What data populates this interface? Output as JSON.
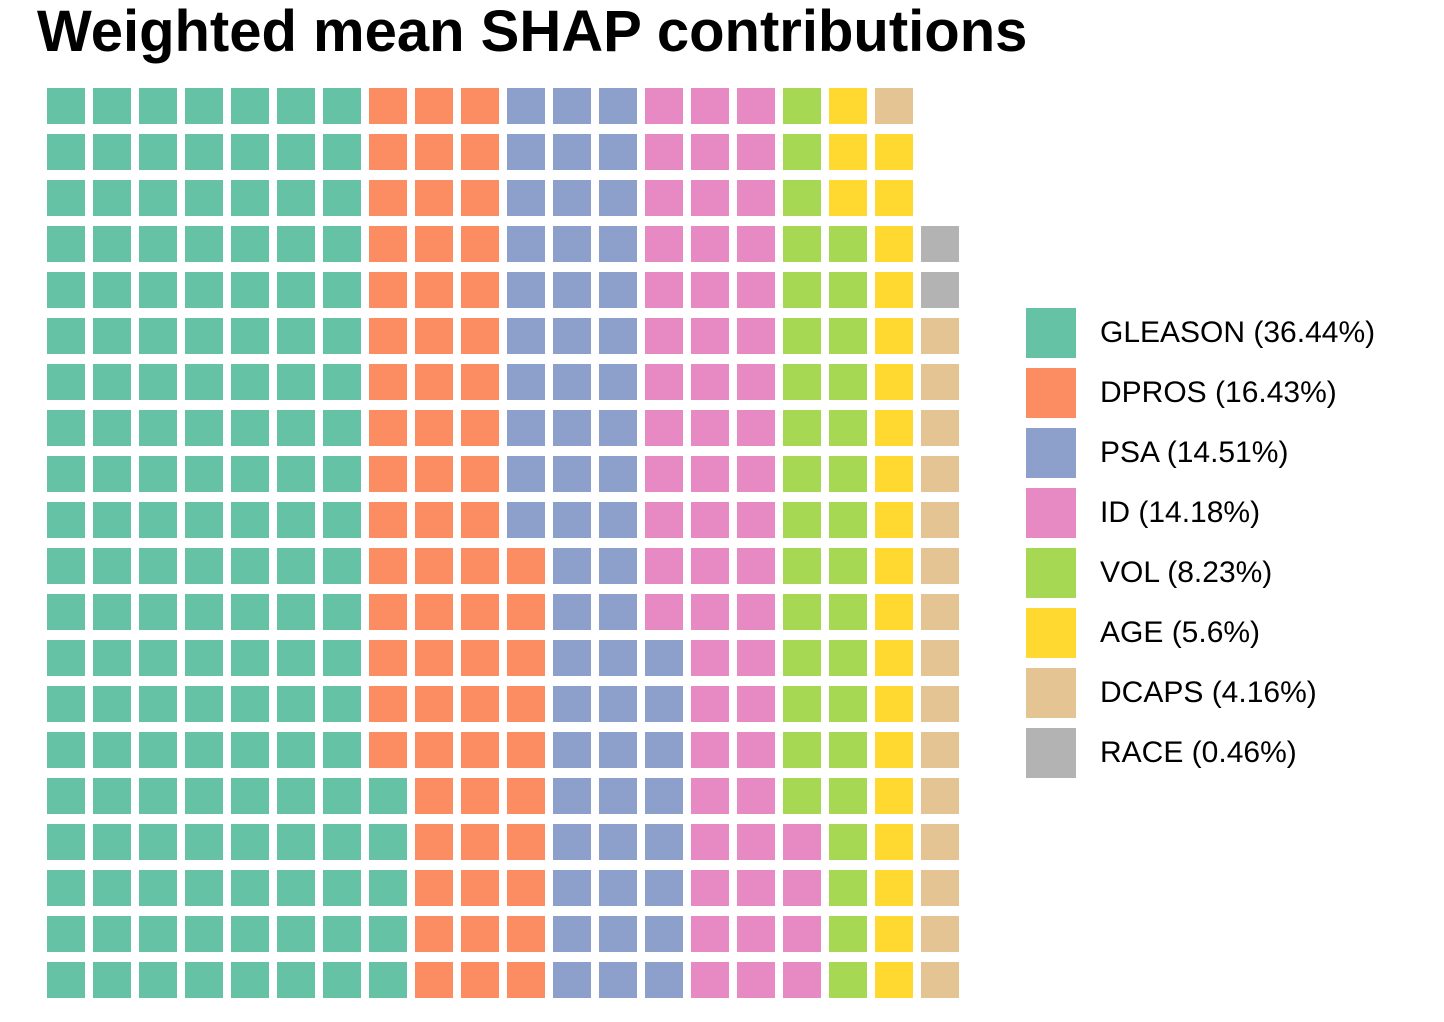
{
  "title": "Weighted mean SHAP contributions",
  "chart_data": {
    "type": "waffle",
    "title": "Weighted mean SHAP contributions",
    "grid": {
      "rows": 20,
      "cols": 20,
      "total_squares": 397,
      "empty_squares": 3,
      "fill_order": "column-major, bottom-to-top within each column, columns left-to-right"
    },
    "legend_position": "right",
    "series": [
      {
        "name": "GLEASON",
        "percent": 36.44,
        "squares": 145,
        "color": "#66C2A5",
        "legend_label": "GLEASON (36.44%)"
      },
      {
        "name": "DPROS",
        "percent": 16.43,
        "squares": 65,
        "color": "#FC8D62",
        "legend_label": "DPROS (16.43%)"
      },
      {
        "name": "PSA",
        "percent": 14.51,
        "squares": 58,
        "color": "#8DA0CB",
        "legend_label": "PSA (14.51%)"
      },
      {
        "name": "ID",
        "percent": 14.18,
        "squares": 56,
        "color": "#E78AC3",
        "legend_label": "ID (14.18%)"
      },
      {
        "name": "VOL",
        "percent": 8.23,
        "squares": 33,
        "color": "#A6D854",
        "legend_label": "VOL (8.23%)"
      },
      {
        "name": "AGE",
        "percent": 5.6,
        "squares": 22,
        "color": "#FFD92F",
        "legend_label": "AGE (5.6%)"
      },
      {
        "name": "DCAPS",
        "percent": 4.16,
        "squares": 16,
        "color": "#E5C494",
        "legend_label": "DCAPS (4.16%)"
      },
      {
        "name": "RACE",
        "percent": 0.46,
        "squares": 2,
        "color": "#B3B3B3",
        "legend_label": "RACE (0.46%)"
      }
    ]
  }
}
